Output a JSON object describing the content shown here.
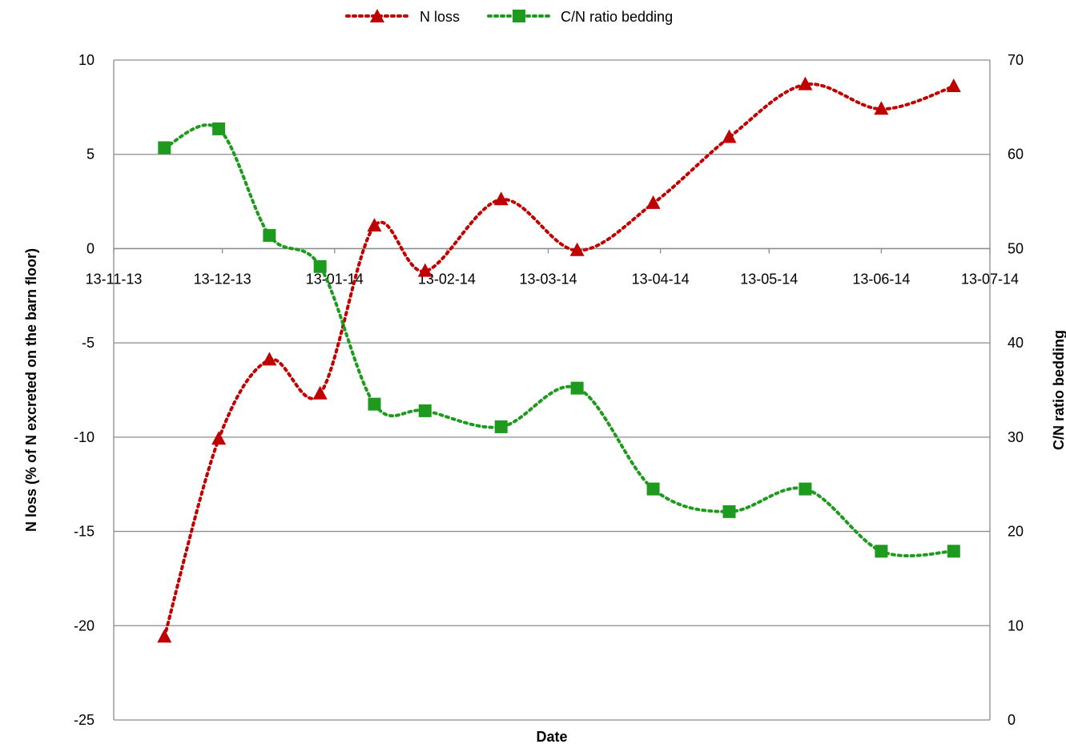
{
  "chart_data": {
    "type": "line",
    "xlabel": "Date",
    "ylabel": "N loss (% of N excreted on the barn floor)",
    "y2label": "C/N ratio bedding",
    "x_ticks": [
      "13-11-13",
      "13-12-13",
      "13-01-14",
      "13-02-14",
      "13-03-14",
      "13-04-14",
      "13-05-14",
      "13-06-14",
      "13-07-14"
    ],
    "x_range": [
      "2013-11-13",
      "2014-07-13"
    ],
    "ylim": [
      -25,
      10
    ],
    "y_ticks": [
      10,
      5,
      0,
      -5,
      -10,
      -15,
      -20,
      -25
    ],
    "y2lim": [
      0,
      70
    ],
    "y2_ticks": [
      70,
      60,
      50,
      40,
      30,
      20,
      10,
      0
    ],
    "grid": "horizontal major",
    "legend_position": "top",
    "series": [
      {
        "name": "N loss",
        "axis": "left",
        "color": "#C00000",
        "marker": "triangle",
        "line_style": "dotted",
        "x": [
          "2013-11-27",
          "2013-12-12",
          "2013-12-26",
          "2014-01-09",
          "2014-01-24",
          "2014-02-07",
          "2014-02-28",
          "2014-03-21",
          "2014-04-11",
          "2014-05-02",
          "2014-05-23",
          "2014-06-13",
          "2014-07-03"
        ],
        "y": [
          -20.6,
          -10.1,
          -5.9,
          -7.7,
          1.2,
          -1.2,
          2.6,
          -0.1,
          2.4,
          5.9,
          8.7,
          7.4,
          8.6
        ]
      },
      {
        "name": "C/N ratio bedding",
        "axis": "right",
        "color": "#1E9B1E",
        "marker": "square",
        "line_style": "dotted",
        "x": [
          "2013-11-27",
          "2013-12-12",
          "2013-12-26",
          "2014-01-09",
          "2014-01-24",
          "2014-02-07",
          "2014-02-28",
          "2014-03-21",
          "2014-04-11",
          "2014-05-02",
          "2014-05-23",
          "2014-06-13",
          "2014-07-03"
        ],
        "y": [
          60.7,
          62.7,
          51.4,
          48.1,
          33.5,
          32.8,
          31.1,
          35.2,
          24.5,
          22.1,
          24.5,
          17.9,
          17.9
        ]
      }
    ]
  }
}
